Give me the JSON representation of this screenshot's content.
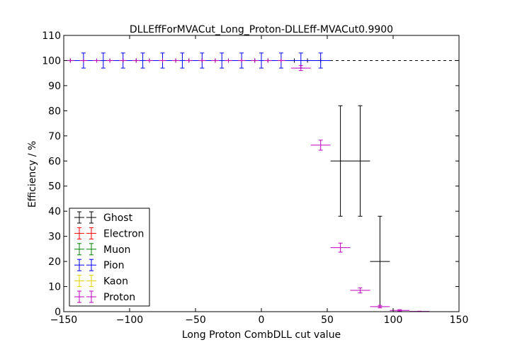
{
  "chart_data": {
    "type": "scatter",
    "title": "DLLEffForMVACut_Long_Proton-DLLEff-MVACut0.9900",
    "xlabel": "Long Proton CombDLL cut value",
    "ylabel": "Efficiency / %",
    "xlim": [
      -150,
      150
    ],
    "ylim": [
      0,
      110
    ],
    "x_ticks": [
      -150,
      -100,
      -50,
      0,
      50,
      100,
      150
    ],
    "y_ticks": [
      0,
      10,
      20,
      30,
      40,
      50,
      60,
      70,
      80,
      90,
      100,
      110
    ],
    "x_tick_labels": [
      "−150",
      "−100",
      "−50",
      "0",
      "50",
      "100",
      "150"
    ],
    "y_tick_labels": [
      "0",
      "10",
      "20",
      "30",
      "40",
      "50",
      "60",
      "70",
      "80",
      "90",
      "100",
      "110"
    ],
    "grid": false,
    "legend_position": "lower-left",
    "reference_line": {
      "y": 100,
      "style": "dashed"
    },
    "series": [
      {
        "name": "Ghost",
        "color": "#000000",
        "points": [
          {
            "x": -145,
            "y": 100,
            "xerr": 3,
            "yerr": 0
          },
          {
            "x": -135,
            "y": 100,
            "xerr": 3,
            "yerr": 0
          },
          {
            "x": -125,
            "y": 100,
            "xerr": 3,
            "yerr": 0
          },
          {
            "x": -115,
            "y": 100,
            "xerr": 3,
            "yerr": 0
          },
          {
            "x": -105,
            "y": 100,
            "xerr": 3,
            "yerr": 0
          },
          {
            "x": -95,
            "y": 100,
            "xerr": 3,
            "yerr": 0
          },
          {
            "x": -85,
            "y": 100,
            "xerr": 3,
            "yerr": 0
          },
          {
            "x": -75,
            "y": 100,
            "xerr": 3,
            "yerr": 0
          },
          {
            "x": -65,
            "y": 100,
            "xerr": 3,
            "yerr": 0
          },
          {
            "x": -55,
            "y": 100,
            "xerr": 3,
            "yerr": 0
          },
          {
            "x": -45,
            "y": 100,
            "xerr": 3,
            "yerr": 0
          },
          {
            "x": -35,
            "y": 100,
            "xerr": 3,
            "yerr": 0
          },
          {
            "x": -25,
            "y": 100,
            "xerr": 3,
            "yerr": 0
          },
          {
            "x": -15,
            "y": 100,
            "xerr": 3,
            "yerr": 0
          },
          {
            "x": -5,
            "y": 100,
            "xerr": 3,
            "yerr": 0
          },
          {
            "x": 5,
            "y": 100,
            "xerr": 3,
            "yerr": 0
          },
          {
            "x": 15,
            "y": 100,
            "xerr": 3,
            "yerr": 0
          },
          {
            "x": 25,
            "y": 100,
            "xerr": 3,
            "yerr": 0
          },
          {
            "x": 35,
            "y": 100,
            "xerr": 3,
            "yerr": 0
          },
          {
            "x": 45,
            "y": 100,
            "xerr": 3,
            "yerr": 0
          },
          {
            "x": 60,
            "y": 60,
            "xerr": 7.5,
            "yerr": 22
          },
          {
            "x": 75,
            "y": 60,
            "xerr": 7.5,
            "yerr": 22
          },
          {
            "x": 90,
            "y": 20,
            "xerr": 7.5,
            "yerr": 18
          }
        ]
      },
      {
        "name": "Electron",
        "color": "#ff0000",
        "points": []
      },
      {
        "name": "Muon",
        "color": "#008000",
        "points": []
      },
      {
        "name": "Pion",
        "color": "#0000ff",
        "points": [
          {
            "x": -135,
            "y": 100,
            "xerr": 7.5,
            "yerr": 3
          },
          {
            "x": -120,
            "y": 100,
            "xerr": 7.5,
            "yerr": 3
          },
          {
            "x": -105,
            "y": 100,
            "xerr": 7.5,
            "yerr": 3
          },
          {
            "x": -90,
            "y": 100,
            "xerr": 7.5,
            "yerr": 3
          },
          {
            "x": -75,
            "y": 100,
            "xerr": 7.5,
            "yerr": 3
          },
          {
            "x": -60,
            "y": 100,
            "xerr": 7.5,
            "yerr": 3
          },
          {
            "x": -45,
            "y": 100,
            "xerr": 7.5,
            "yerr": 3
          },
          {
            "x": -30,
            "y": 100,
            "xerr": 7.5,
            "yerr": 3
          },
          {
            "x": -15,
            "y": 100,
            "xerr": 7.5,
            "yerr": 3
          },
          {
            "x": 0,
            "y": 100,
            "xerr": 7.5,
            "yerr": 3
          },
          {
            "x": 15,
            "y": 100,
            "xerr": 7.5,
            "yerr": 3
          },
          {
            "x": 30,
            "y": 100,
            "xerr": 7.5,
            "yerr": 3
          },
          {
            "x": 45,
            "y": 100,
            "xerr": 7.5,
            "yerr": 3
          }
        ]
      },
      {
        "name": "Kaon",
        "color": "#e6d200",
        "points": []
      },
      {
        "name": "Proton",
        "color": "#bf00bf",
        "points": [
          {
            "x": -145,
            "y": 100,
            "xerr": 3,
            "yerr": 0
          },
          {
            "x": -135,
            "y": 100,
            "xerr": 3,
            "yerr": 0
          },
          {
            "x": -125,
            "y": 100,
            "xerr": 3,
            "yerr": 0
          },
          {
            "x": -115,
            "y": 100,
            "xerr": 3,
            "yerr": 0
          },
          {
            "x": -105,
            "y": 100,
            "xerr": 3,
            "yerr": 0
          },
          {
            "x": -95,
            "y": 100,
            "xerr": 3,
            "yerr": 0
          },
          {
            "x": -85,
            "y": 100,
            "xerr": 3,
            "yerr": 0
          },
          {
            "x": -75,
            "y": 100,
            "xerr": 3,
            "yerr": 0
          },
          {
            "x": -65,
            "y": 100,
            "xerr": 3,
            "yerr": 0
          },
          {
            "x": -55,
            "y": 100,
            "xerr": 3,
            "yerr": 0
          },
          {
            "x": -45,
            "y": 100,
            "xerr": 3,
            "yerr": 0
          },
          {
            "x": -35,
            "y": 100,
            "xerr": 3,
            "yerr": 0
          },
          {
            "x": -25,
            "y": 100,
            "xerr": 3,
            "yerr": 0
          },
          {
            "x": -15,
            "y": 100,
            "xerr": 3,
            "yerr": 0
          },
          {
            "x": -5,
            "y": 100,
            "xerr": 3,
            "yerr": 0
          },
          {
            "x": 5,
            "y": 100,
            "xerr": 3,
            "yerr": 0
          },
          {
            "x": 15,
            "y": 100,
            "xerr": 3,
            "yerr": 0
          },
          {
            "x": 30,
            "y": 97,
            "xerr": 7.5,
            "yerr": 1
          },
          {
            "x": 45,
            "y": 66.3,
            "xerr": 7.5,
            "yerr": 2
          },
          {
            "x": 60,
            "y": 25.5,
            "xerr": 7.5,
            "yerr": 1.8
          },
          {
            "x": 75,
            "y": 8.5,
            "xerr": 7.5,
            "yerr": 1
          },
          {
            "x": 90,
            "y": 2,
            "xerr": 7.5,
            "yerr": 0.5
          },
          {
            "x": 105,
            "y": 0.5,
            "xerr": 7.5,
            "yerr": 0.3
          },
          {
            "x": 120,
            "y": 0.1,
            "xerr": 7.5,
            "yerr": 0.1
          }
        ]
      }
    ]
  }
}
